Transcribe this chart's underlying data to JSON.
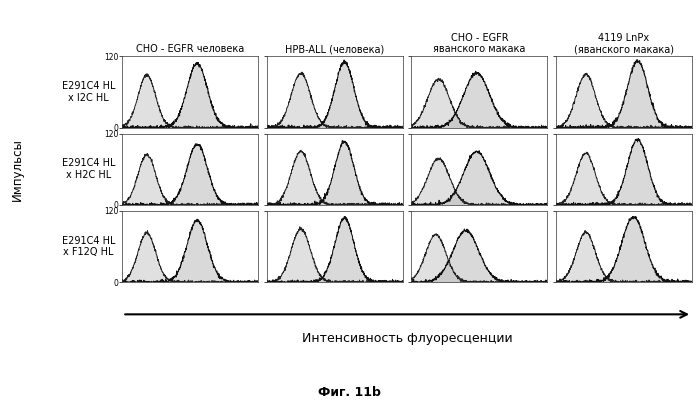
{
  "col_titles": [
    "CHO - EGFR человека",
    "HPB-ALL (человека)",
    "CHO - EGFR\nяванского макака",
    "4119 LnPx\n(яванского макака)"
  ],
  "row_labels": [
    "E291C4 HL\nx I2C HL",
    "E291C4 HL\nx H2C HL",
    "E291C4 HL\nx F12Q HL"
  ],
  "ylabel": "Импульсы",
  "xlabel": "Интенсивность флуоресценции",
  "figure_label": "Фиг. 11b",
  "ymax": 120,
  "background": "#ffffff"
}
